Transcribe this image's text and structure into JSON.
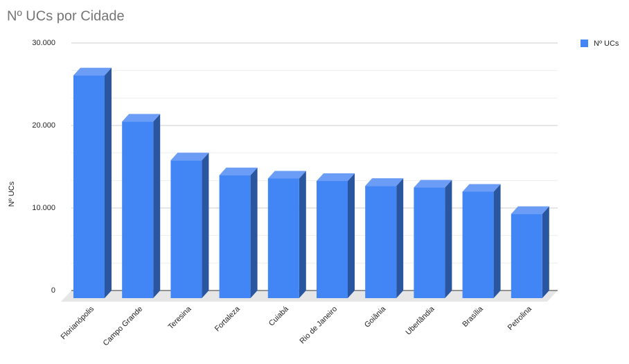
{
  "chart_data": {
    "type": "bar3d",
    "title": "Nº UCs por Cidade",
    "y_label": "Nº UCs",
    "categories": [
      "Florianópolis",
      "Campo Grande",
      "Teresina",
      "Fortaleza",
      "Cuiabá",
      "Rio de Janeiro",
      "Goiânia",
      "Uberlândia",
      "Brasília",
      "Petrolina"
    ],
    "series": [
      {
        "name": "Nº UCs",
        "color": "#4285f4",
        "values": [
          27000,
          21400,
          16700,
          14900,
          14500,
          14200,
          13600,
          13400,
          12900,
          10200
        ]
      }
    ],
    "ylim": [
      0,
      30000
    ],
    "yticks": [
      0,
      {
        "value": 10000,
        "label": "10.000"
      },
      {
        "value": 20000,
        "label": "20.000"
      },
      {
        "value": 30000,
        "label": "30.000"
      }
    ],
    "grid": true,
    "legend": "right"
  }
}
